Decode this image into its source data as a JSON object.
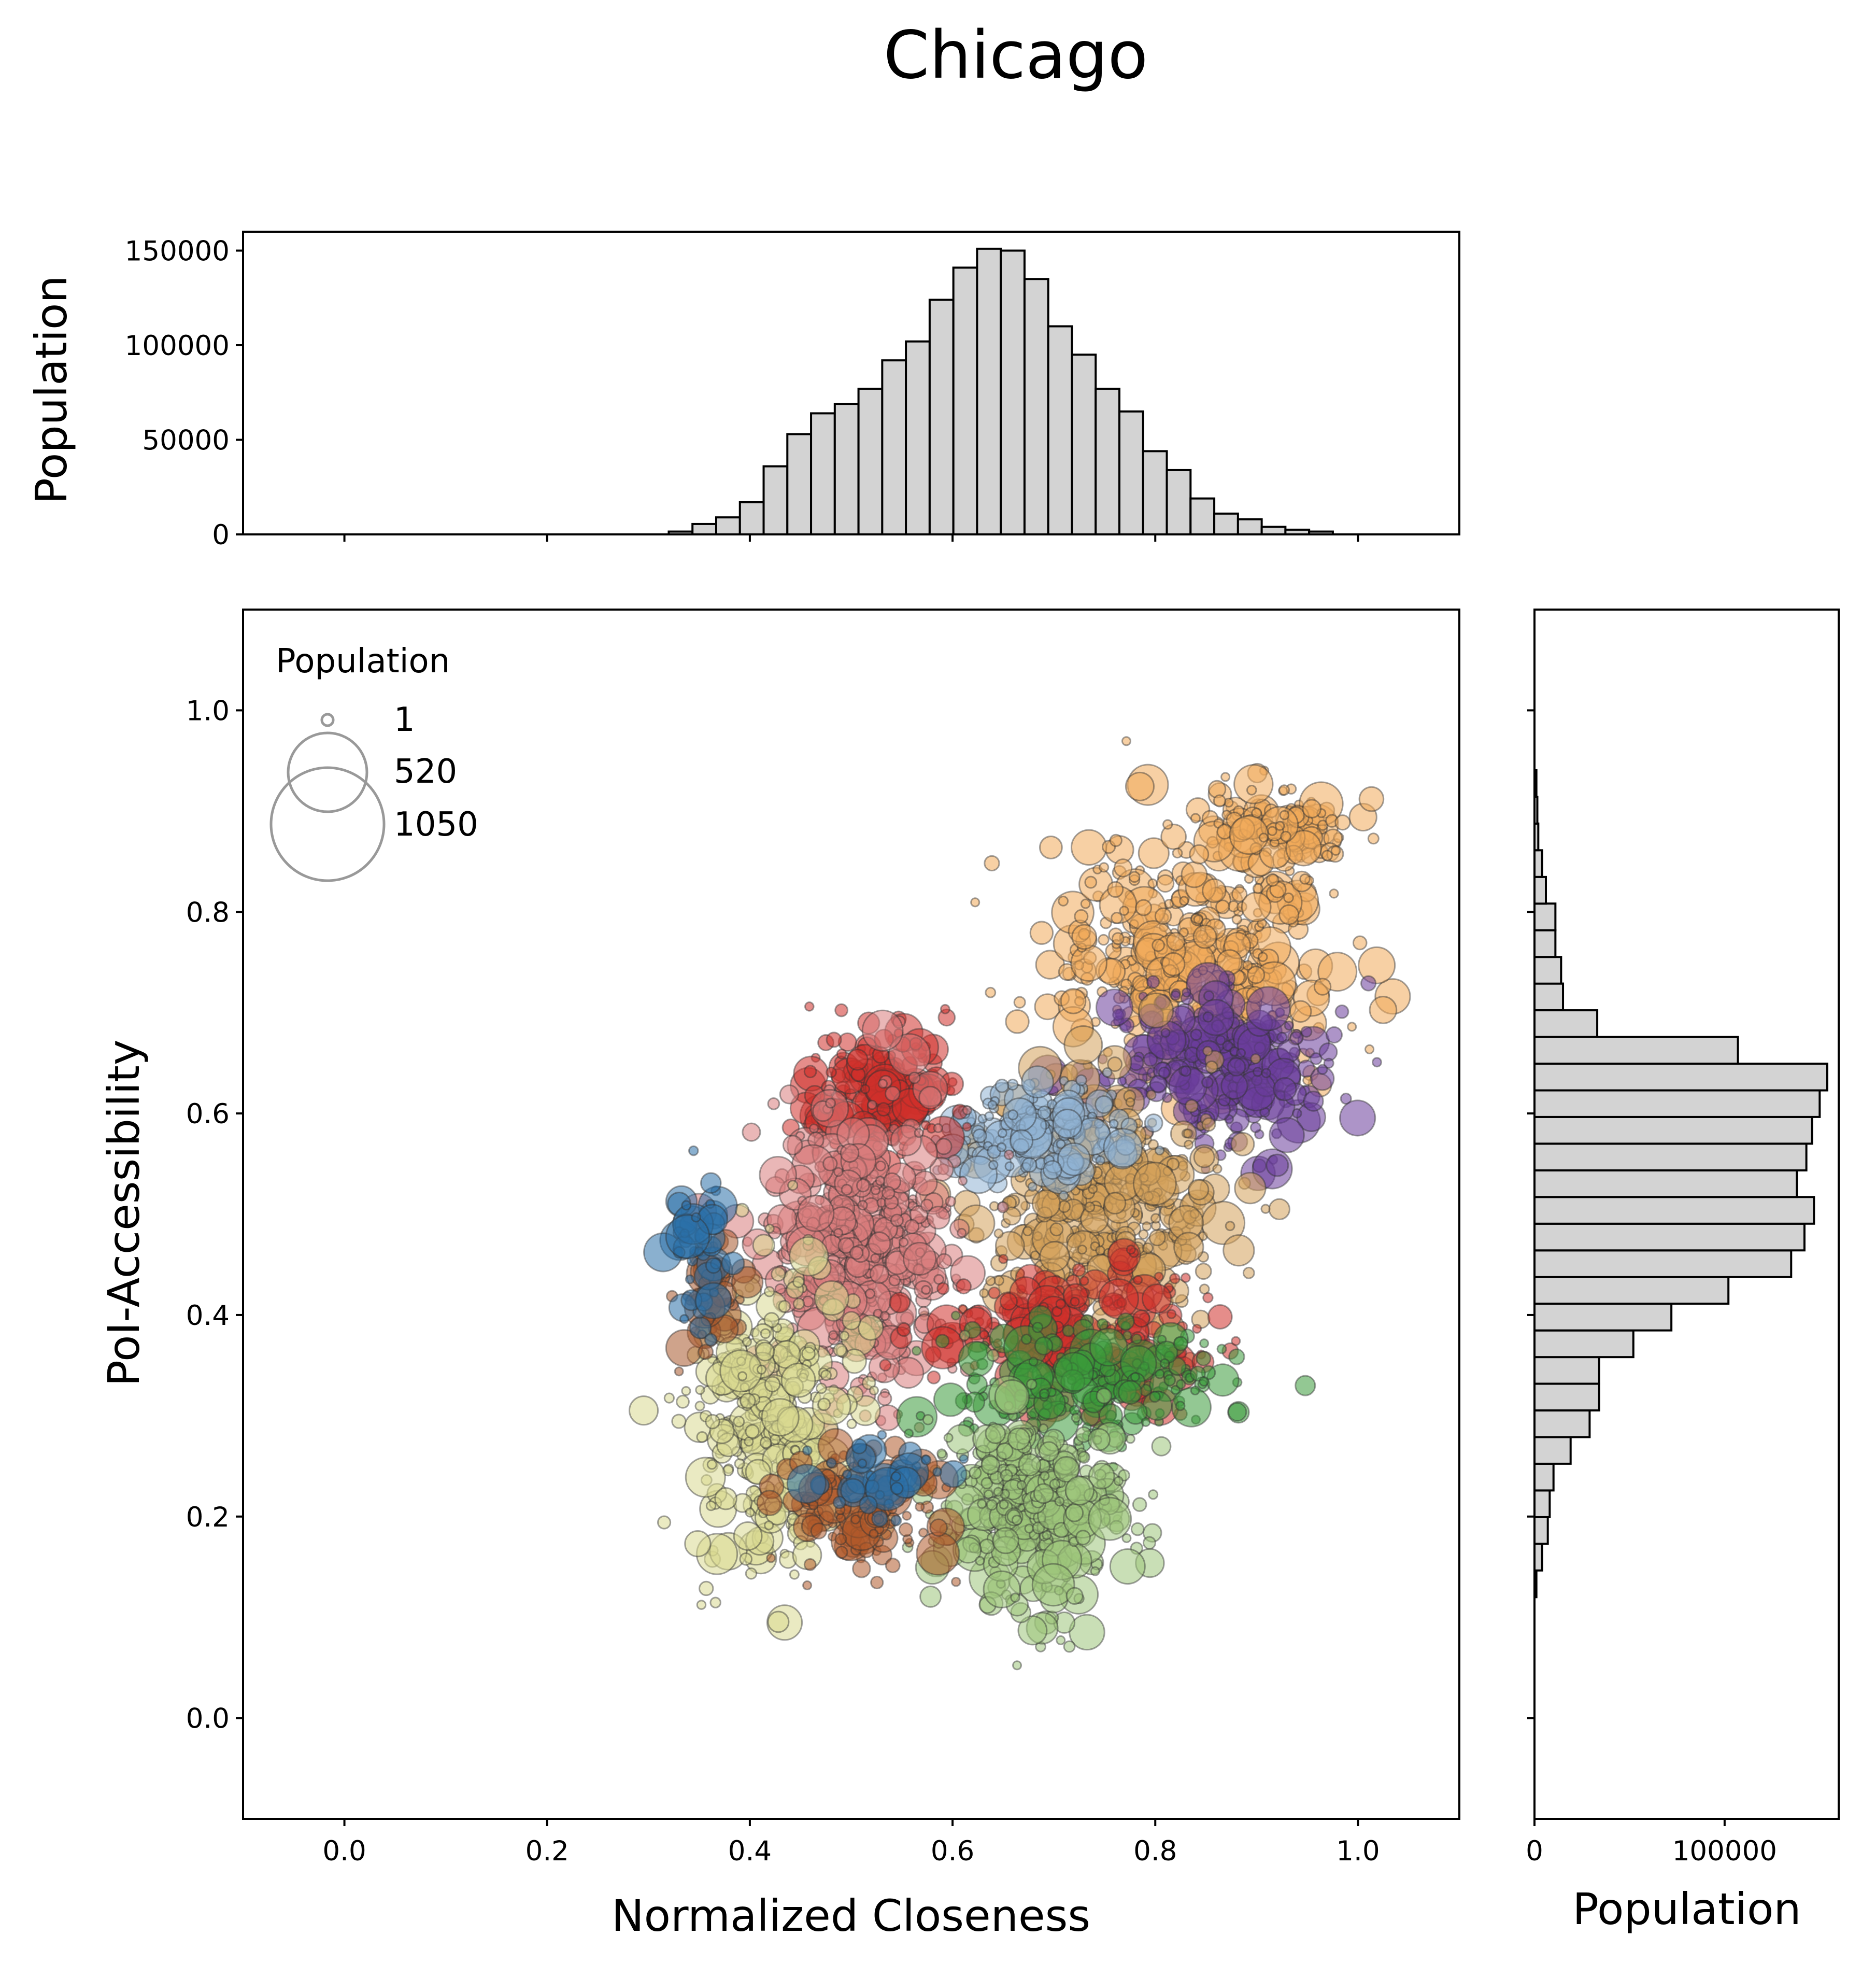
{
  "title": "Chicago",
  "chart_data": [
    {
      "id": "top-histogram",
      "type": "bar",
      "orientation": "vertical",
      "ylabel": "Population",
      "xlim": [
        -0.1,
        1.1
      ],
      "ylim": [
        0,
        160000
      ],
      "yticks": [
        0,
        50000,
        100000,
        150000
      ],
      "xticks": [
        0.0,
        0.2,
        0.4,
        0.6,
        0.8,
        1.0
      ],
      "xtick_labels_shown": false,
      "bin_width": 0.0234,
      "bin_starts": [
        0.32,
        0.3434,
        0.3668,
        0.3902,
        0.4136,
        0.437,
        0.4604,
        0.4838,
        0.5072,
        0.5306,
        0.554,
        0.5774,
        0.6008,
        0.6242,
        0.6476,
        0.671,
        0.6944,
        0.7178,
        0.7412,
        0.7646,
        0.788,
        0.8114,
        0.8348,
        0.8582,
        0.8816,
        0.905,
        0.9284,
        0.9518
      ],
      "values": [
        1500,
        5500,
        9000,
        17000,
        36000,
        53000,
        64000,
        69000,
        77000,
        92000,
        102000,
        124000,
        141000,
        151000,
        150000,
        135000,
        110000,
        95000,
        77000,
        65000,
        44000,
        34000,
        19000,
        11000,
        8000,
        4000,
        2500,
        1500
      ],
      "bar_color": "#d3d3d3",
      "edge_color": "#000000"
    },
    {
      "id": "scatter",
      "type": "scatter",
      "xlabel": "Normalized Closeness",
      "ylabel": "PoI-Accessibility",
      "xlim": [
        -0.1,
        1.1
      ],
      "ylim": [
        -0.1,
        1.1
      ],
      "xticks": [
        0.0,
        0.2,
        0.4,
        0.6,
        0.8,
        1.0
      ],
      "yticks": [
        0.0,
        0.2,
        0.4,
        0.6,
        0.8,
        1.0
      ],
      "grid": false,
      "legend": {
        "title": "Population",
        "placement": "top-left",
        "entries": [
          "1",
          "520",
          "1050"
        ]
      },
      "clusters": [
        {
          "color": "#f0a95a",
          "cx": 0.84,
          "cy": 0.76,
          "sx": 0.07,
          "sy": 0.06,
          "n": 420
        },
        {
          "color": "#f0a95a",
          "cx": 0.92,
          "cy": 0.88,
          "sx": 0.03,
          "sy": 0.02,
          "n": 120
        },
        {
          "color": "#6a3d9a",
          "cx": 0.86,
          "cy": 0.65,
          "sx": 0.06,
          "sy": 0.04,
          "n": 280
        },
        {
          "color": "#d4a05a",
          "cx": 0.75,
          "cy": 0.51,
          "sx": 0.06,
          "sy": 0.06,
          "n": 420
        },
        {
          "color": "#8fb3d4",
          "cx": 0.68,
          "cy": 0.58,
          "sx": 0.05,
          "sy": 0.025,
          "n": 160
        },
        {
          "color": "#d0302a",
          "cx": 0.53,
          "cy": 0.62,
          "sx": 0.035,
          "sy": 0.03,
          "n": 200
        },
        {
          "color": "#d97b7b",
          "cx": 0.51,
          "cy": 0.47,
          "sx": 0.05,
          "sy": 0.07,
          "n": 480
        },
        {
          "color": "#d0302a",
          "cx": 0.72,
          "cy": 0.38,
          "sx": 0.06,
          "sy": 0.035,
          "n": 220
        },
        {
          "color": "#3a9a3a",
          "cx": 0.74,
          "cy": 0.33,
          "sx": 0.07,
          "sy": 0.03,
          "n": 200
        },
        {
          "color": "#9cc47a",
          "cx": 0.68,
          "cy": 0.21,
          "sx": 0.045,
          "sy": 0.05,
          "n": 400
        },
        {
          "color": "#d8d890",
          "cx": 0.42,
          "cy": 0.3,
          "sx": 0.04,
          "sy": 0.07,
          "n": 340
        },
        {
          "color": "#b05a2a",
          "cx": 0.51,
          "cy": 0.21,
          "sx": 0.04,
          "sy": 0.03,
          "n": 150
        },
        {
          "color": "#a8582c",
          "cx": 0.36,
          "cy": 0.42,
          "sx": 0.015,
          "sy": 0.03,
          "n": 60
        },
        {
          "color": "#2a6fa8",
          "cx": 0.35,
          "cy": 0.47,
          "sx": 0.012,
          "sy": 0.04,
          "n": 50
        },
        {
          "color": "#2a6fa8",
          "cx": 0.54,
          "cy": 0.24,
          "sx": 0.03,
          "sy": 0.02,
          "n": 40
        }
      ]
    },
    {
      "id": "right-histogram",
      "type": "bar",
      "orientation": "horizontal",
      "xlabel": "Population",
      "xlim": [
        0,
        160000
      ],
      "xticks": [
        0,
        100000
      ],
      "ylim": [
        -0.1,
        1.1
      ],
      "ytick_labels_shown": false,
      "bin_width": 0.02647,
      "bin_starts": [
        0.12,
        0.1465,
        0.1729,
        0.1994,
        0.2259,
        0.2524,
        0.2788,
        0.3053,
        0.3318,
        0.3582,
        0.3847,
        0.4112,
        0.4376,
        0.4641,
        0.4906,
        0.5171,
        0.5435,
        0.57,
        0.5965,
        0.6229,
        0.6494,
        0.6759,
        0.7024,
        0.7288,
        0.7553,
        0.7818,
        0.8082,
        0.8347,
        0.8612,
        0.8876,
        0.9141
      ],
      "values": [
        1000,
        4000,
        7000,
        8000,
        10000,
        19000,
        29000,
        34000,
        34000,
        52000,
        72000,
        102000,
        135000,
        142000,
        147000,
        138000,
        143000,
        146000,
        150000,
        154000,
        107000,
        33000,
        15000,
        14000,
        11000,
        11000,
        6000,
        4000,
        2000,
        1500,
        1000
      ],
      "bar_color": "#d3d3d3",
      "edge_color": "#000000"
    }
  ]
}
